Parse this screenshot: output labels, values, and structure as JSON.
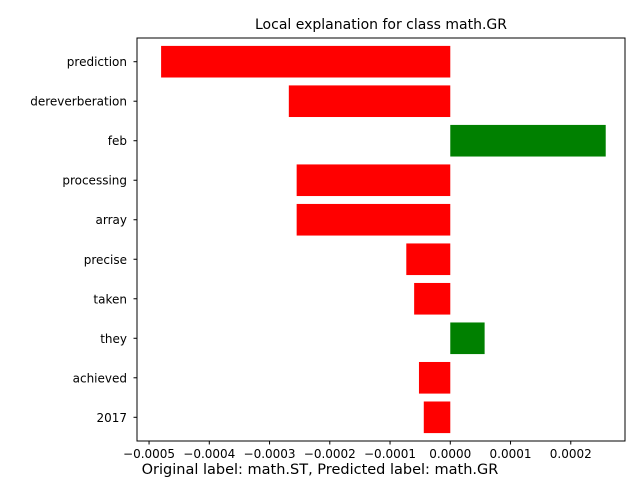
{
  "chart_data": {
    "type": "bar",
    "orientation": "horizontal",
    "title": "Local explanation for class math.GR",
    "caption": "Original label: math.ST, Predicted label: math.GR",
    "categories": [
      "prediction",
      "dereverberation",
      "feb",
      "processing",
      "array",
      "precise",
      "taken",
      "they",
      "achieved",
      "2017"
    ],
    "values": [
      -0.00048,
      -0.000268,
      0.000258,
      -0.000255,
      -0.000255,
      -7.3e-05,
      -6e-05,
      5.7e-05,
      -5.2e-05,
      -4.4e-05
    ],
    "xlim": [
      -0.00052,
      0.00029
    ],
    "xticks": [
      -0.0005,
      -0.0004,
      -0.0003,
      -0.0002,
      -0.0001,
      0.0,
      0.0001,
      0.0002
    ],
    "xtick_labels": [
      "−0.0005",
      "−0.0004",
      "−0.0003",
      "−0.0002",
      "−0.0001",
      "0.0000",
      "0.0001",
      "0.0002"
    ],
    "grid": false,
    "colors": {
      "positive": "#008000",
      "negative": "#ff0000",
      "axes": "#000000",
      "background": "#ffffff"
    }
  }
}
